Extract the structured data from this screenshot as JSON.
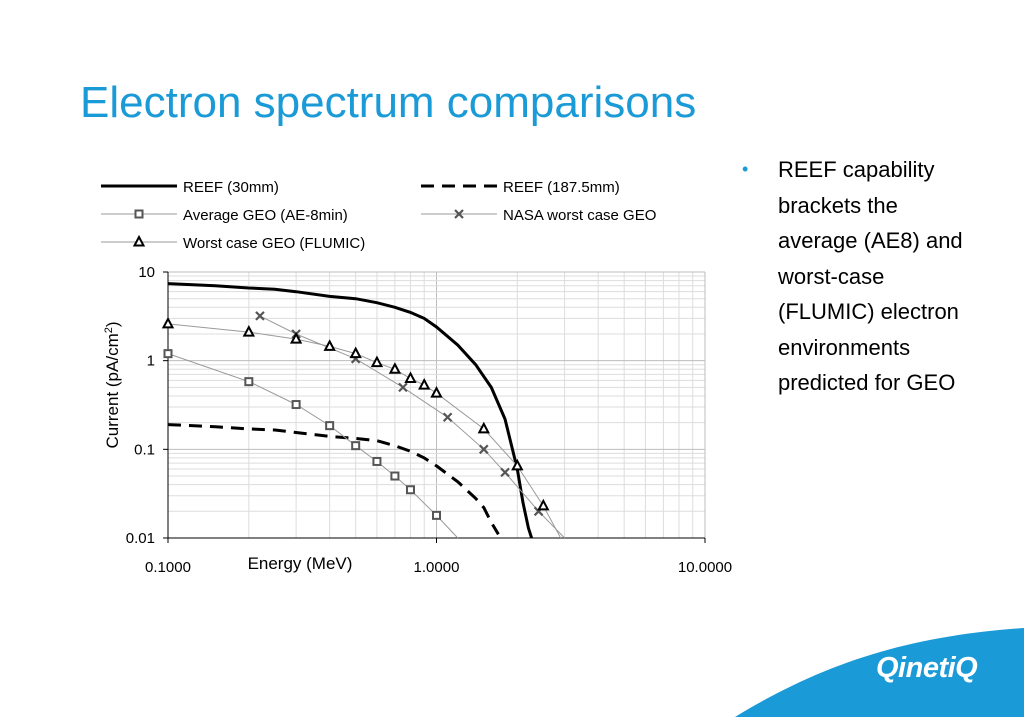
{
  "slide": {
    "title": "Electron spectrum comparisons",
    "bullet": "REEF capability brackets the average (AE8) and worst-case (FLUMIC) electron environments predicted for GEO",
    "logo": "QinetiQ",
    "accent_color": "#1a9ad6"
  },
  "chart_data": {
    "type": "line",
    "x_scale": "log",
    "y_scale": "log",
    "xlabel": "Energy (MeV)",
    "ylabel": "Current (pA/cm2)",
    "xlim": [
      0.1,
      10
    ],
    "ylim": [
      0.01,
      10
    ],
    "x_tick_labels": [
      "0.1000",
      "1.0000",
      "10.0000"
    ],
    "y_tick_labels": [
      "10",
      "1",
      "0.1",
      "0.01"
    ],
    "grid": true,
    "legend_position": "top",
    "series": [
      {
        "name": "REEF (30mm)",
        "style": "thick-solid",
        "marker": "none",
        "x": [
          0.1,
          0.15,
          0.2,
          0.25,
          0.3,
          0.4,
          0.5,
          0.6,
          0.7,
          0.8,
          0.9,
          1.0,
          1.2,
          1.4,
          1.6,
          1.8,
          2.0,
          2.1,
          2.2,
          2.26
        ],
        "y": [
          7.4,
          7.0,
          6.6,
          6.4,
          6.0,
          5.3,
          5.0,
          4.5,
          4.0,
          3.5,
          3.0,
          2.4,
          1.5,
          0.9,
          0.5,
          0.22,
          0.06,
          0.025,
          0.013,
          0.01
        ]
      },
      {
        "name": "REEF (187.5mm)",
        "style": "thick-dashed",
        "marker": "none",
        "x": [
          0.1,
          0.15,
          0.2,
          0.25,
          0.3,
          0.4,
          0.5,
          0.6,
          0.7,
          0.8,
          0.9,
          1.0,
          1.2,
          1.4,
          1.5,
          1.6,
          1.7
        ],
        "y": [
          0.19,
          0.18,
          0.17,
          0.165,
          0.155,
          0.14,
          0.133,
          0.125,
          0.11,
          0.095,
          0.08,
          0.065,
          0.043,
          0.028,
          0.022,
          0.015,
          0.011
        ]
      },
      {
        "name": "Average GEO (AE-8min)",
        "style": "thin",
        "marker": "square",
        "x": [
          0.1,
          0.2,
          0.3,
          0.4,
          0.5,
          0.6,
          0.7,
          0.8,
          1.0,
          1.2
        ],
        "y": [
          1.2,
          0.58,
          0.32,
          0.185,
          0.11,
          0.073,
          0.05,
          0.035,
          0.018,
          0.01
        ]
      },
      {
        "name": "NASA worst case GEO",
        "style": "thin",
        "marker": "x",
        "x": [
          0.22,
          0.3,
          0.5,
          0.75,
          1.1,
          1.5,
          1.8,
          2.4,
          3.0
        ],
        "y": [
          3.2,
          2.0,
          1.05,
          0.5,
          0.23,
          0.1,
          0.055,
          0.02,
          0.01
        ]
      },
      {
        "name": "Worst case GEO (FLUMIC)",
        "style": "thin",
        "marker": "triangle",
        "x": [
          0.1,
          0.2,
          0.3,
          0.4,
          0.5,
          0.6,
          0.7,
          0.8,
          0.9,
          1.0,
          1.5,
          2.0,
          2.5,
          2.9
        ],
        "y": [
          2.6,
          2.1,
          1.75,
          1.45,
          1.2,
          0.95,
          0.8,
          0.63,
          0.53,
          0.43,
          0.17,
          0.065,
          0.023,
          0.01
        ]
      }
    ]
  }
}
